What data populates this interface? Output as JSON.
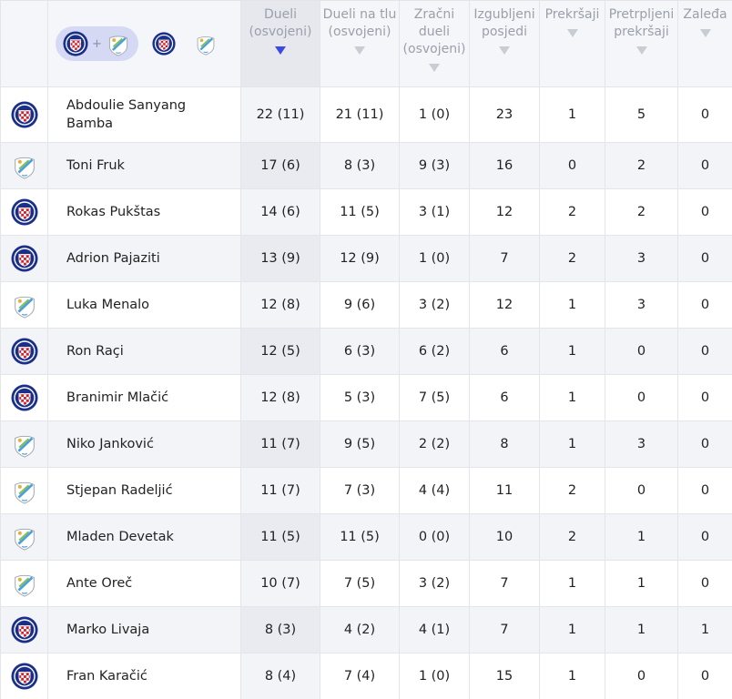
{
  "columns": [
    {
      "key": "duels",
      "label": "Dueli (osvojeni)",
      "sorted": true
    },
    {
      "key": "ground",
      "label": "Dueli na tlu (osvojeni)",
      "sorted": false
    },
    {
      "key": "aerial",
      "label": "Zračni dueli (osvojeni)",
      "sorted": false
    },
    {
      "key": "lost",
      "label": "Izgubljeni posjedi",
      "sorted": false
    },
    {
      "key": "fouls",
      "label": "Prekršaji",
      "sorted": false
    },
    {
      "key": "fouled",
      "label": "Pretrpljeni prekršaji",
      "sorted": false
    },
    {
      "key": "offsides",
      "label": "Zaleđa",
      "sorted": false
    }
  ],
  "filters": {
    "combined_plus": "+"
  },
  "rows": [
    {
      "team": "hajduk",
      "name": "Abdoulie Sanyang Bamba",
      "duels": "22 (11)",
      "ground": "21 (11)",
      "aerial": "1 (0)",
      "lost": "23",
      "fouls": "1",
      "fouled": "5",
      "offsides": "0"
    },
    {
      "team": "rijeka",
      "name": "Toni Fruk",
      "duels": "17 (6)",
      "ground": "8 (3)",
      "aerial": "9 (3)",
      "lost": "16",
      "fouls": "0",
      "fouled": "2",
      "offsides": "0"
    },
    {
      "team": "hajduk",
      "name": "Rokas Pukštas",
      "duels": "14 (6)",
      "ground": "11 (5)",
      "aerial": "3 (1)",
      "lost": "12",
      "fouls": "2",
      "fouled": "2",
      "offsides": "0"
    },
    {
      "team": "hajduk",
      "name": "Adrion Pajaziti",
      "duels": "13 (9)",
      "ground": "12 (9)",
      "aerial": "1 (0)",
      "lost": "7",
      "fouls": "2",
      "fouled": "3",
      "offsides": "0"
    },
    {
      "team": "rijeka",
      "name": "Luka Menalo",
      "duels": "12 (8)",
      "ground": "9 (6)",
      "aerial": "3 (2)",
      "lost": "12",
      "fouls": "1",
      "fouled": "3",
      "offsides": "0"
    },
    {
      "team": "hajduk",
      "name": "Ron Raçi",
      "duels": "12 (5)",
      "ground": "6 (3)",
      "aerial": "6 (2)",
      "lost": "6",
      "fouls": "1",
      "fouled": "0",
      "offsides": "0"
    },
    {
      "team": "hajduk",
      "name": "Branimir Mlačić",
      "duels": "12 (8)",
      "ground": "5 (3)",
      "aerial": "7 (5)",
      "lost": "6",
      "fouls": "1",
      "fouled": "0",
      "offsides": "0"
    },
    {
      "team": "rijeka",
      "name": "Niko Janković",
      "duels": "11 (7)",
      "ground": "9 (5)",
      "aerial": "2 (2)",
      "lost": "8",
      "fouls": "1",
      "fouled": "3",
      "offsides": "0"
    },
    {
      "team": "rijeka",
      "name": "Stjepan Radeljić",
      "duels": "11 (7)",
      "ground": "7 (3)",
      "aerial": "4 (4)",
      "lost": "11",
      "fouls": "2",
      "fouled": "0",
      "offsides": "0"
    },
    {
      "team": "rijeka",
      "name": "Mladen Devetak",
      "duels": "11 (5)",
      "ground": "11 (5)",
      "aerial": "0 (0)",
      "lost": "10",
      "fouls": "2",
      "fouled": "1",
      "offsides": "0"
    },
    {
      "team": "rijeka",
      "name": "Ante Oreč",
      "duels": "10 (7)",
      "ground": "7 (5)",
      "aerial": "3 (2)",
      "lost": "7",
      "fouls": "1",
      "fouled": "1",
      "offsides": "0"
    },
    {
      "team": "hajduk",
      "name": "Marko Livaja",
      "duels": "8 (3)",
      "ground": "4 (2)",
      "aerial": "4 (1)",
      "lost": "7",
      "fouls": "1",
      "fouled": "1",
      "offsides": "1"
    },
    {
      "team": "hajduk",
      "name": "Fran Karačić",
      "duels": "8 (4)",
      "ground": "7 (4)",
      "aerial": "1 (0)",
      "lost": "15",
      "fouls": "1",
      "fouled": "0",
      "offsides": "0"
    }
  ]
}
